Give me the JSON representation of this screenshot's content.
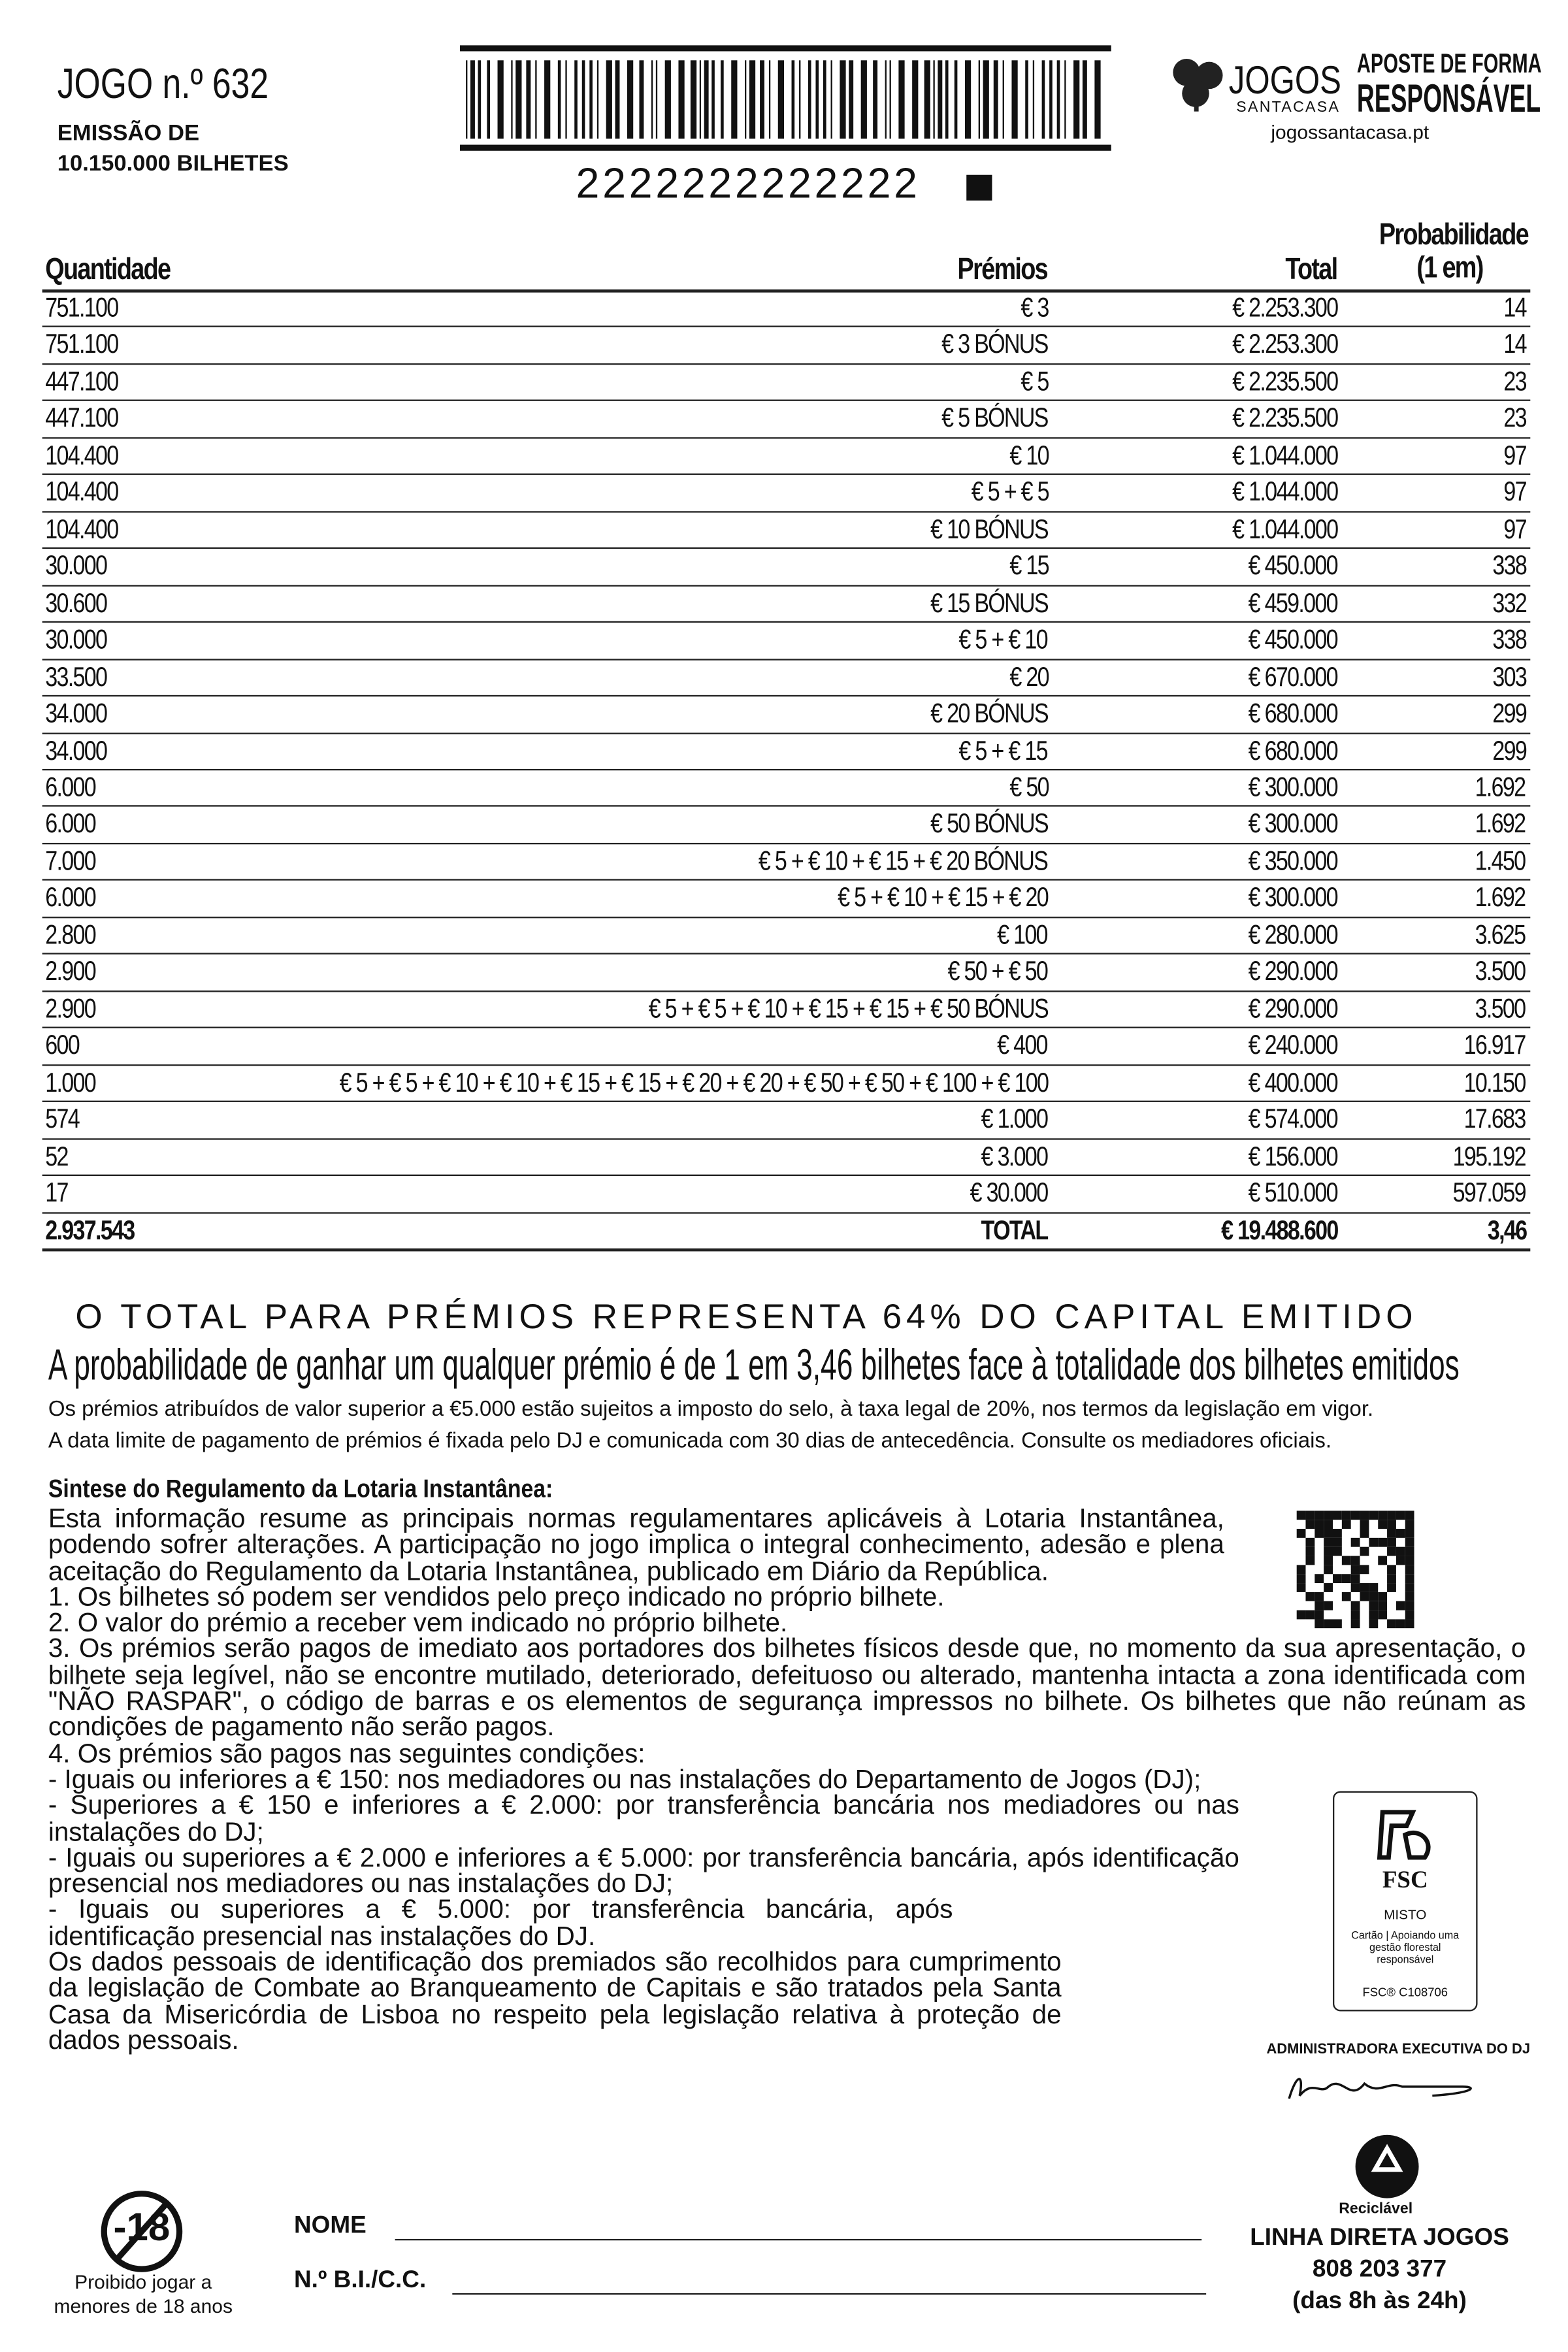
{
  "header": {
    "game": "JOGO n.º 632",
    "emission": [
      "EMISSÃO DE",
      "10.150.000 BILHETES"
    ],
    "barcode_number": "2222222222222",
    "brand": "JOGOS",
    "brand_sub": "SANTACASA",
    "slogan": [
      "APOSTE DE FORMA",
      "RESPONSÁVEL"
    ],
    "website": "jogossantacasa.pt"
  },
  "table": {
    "columns": [
      "Quantidade",
      "Prémios",
      "Total",
      [
        "Probabilidade",
        "(1 em)"
      ]
    ],
    "rows": [
      [
        "751.100",
        "€ 3",
        "€ 2.253.300",
        "14"
      ],
      [
        "751.100",
        "€ 3 BÓNUS",
        "€ 2.253.300",
        "14"
      ],
      [
        "447.100",
        "€ 5",
        "€ 2.235.500",
        "23"
      ],
      [
        "447.100",
        "€ 5 BÓNUS",
        "€ 2.235.500",
        "23"
      ],
      [
        "104.400",
        "€ 10",
        "€ 1.044.000",
        "97"
      ],
      [
        "104.400",
        "€ 5 + € 5",
        "€ 1.044.000",
        "97"
      ],
      [
        "104.400",
        "€ 10 BÓNUS",
        "€ 1.044.000",
        "97"
      ],
      [
        "30.000",
        "€ 15",
        "€ 450.000",
        "338"
      ],
      [
        "30.600",
        "€ 15 BÓNUS",
        "€ 459.000",
        "332"
      ],
      [
        "30.000",
        "€ 5 + € 10",
        "€ 450.000",
        "338"
      ],
      [
        "33.500",
        "€ 20",
        "€ 670.000",
        "303"
      ],
      [
        "34.000",
        "€ 20 BÓNUS",
        "€ 680.000",
        "299"
      ],
      [
        "34.000",
        "€ 5 + € 15",
        "€ 680.000",
        "299"
      ],
      [
        "6.000",
        "€ 50",
        "€ 300.000",
        "1.692"
      ],
      [
        "6.000",
        "€ 50 BÓNUS",
        "€ 300.000",
        "1.692"
      ],
      [
        "7.000",
        "€ 5 + € 10 + € 15 + € 20 BÓNUS",
        "€ 350.000",
        "1.450"
      ],
      [
        "6.000",
        "€ 5 + € 10 + € 15 + € 20",
        "€ 300.000",
        "1.692"
      ],
      [
        "2.800",
        "€ 100",
        "€ 280.000",
        "3.625"
      ],
      [
        "2.900",
        "€ 50 + € 50",
        "€ 290.000",
        "3.500"
      ],
      [
        "2.900",
        "€ 5 + € 5 + € 10 + € 15 + € 15 + € 50 BÓNUS",
        "€ 290.000",
        "3.500"
      ],
      [
        "600",
        "€ 400",
        "€ 240.000",
        "16.917"
      ],
      [
        "1.000",
        "€ 5 + € 5 + € 10 + € 10 + € 15  + € 15 + € 20 + € 20 + € 50 + € 50 + € 100 + € 100",
        "€ 400.000",
        "10.150"
      ],
      [
        "574",
        "€ 1.000",
        "€ 574.000",
        "17.683"
      ],
      [
        "52",
        "€ 3.000",
        "€ 156.000",
        "195.192"
      ],
      [
        "17",
        "€ 30.000",
        "€ 510.000",
        "597.059"
      ]
    ],
    "total": [
      "2.937.543",
      "TOTAL",
      "€ 19.488.600",
      "3,46"
    ]
  },
  "summary": {
    "headline": "O TOTAL PARA PRÉMIOS REPRESENTA 64% DO CAPITAL EMITIDO",
    "subheadline": "A probabilidade de ganhar um qualquer prémio é de 1 em 3,46 bilhetes face à totalidade dos bilhetes emitidos",
    "notes": [
      "Os prémios atribuídos de valor superior a €5.000 estão sujeitos a imposto do selo, à taxa legal de 20%, nos termos da legislação em vigor.",
      "A data limite de pagamento de prémios é fixada pelo DJ e comunicada com 30 dias de antecedência. Consulte os mediadores oficiais."
    ]
  },
  "regulation": {
    "title": "Sintese do Regulamento da Lotaria Instantânea:",
    "paragraphs": [
      "Esta informação resume as principais normas regulamentares aplicáveis à Lotaria Instantânea, podendo sofrer alterações. A participação no jogo implica o integral conhecimento, adesão e plena aceitação do Regulamento da Lotaria Instantânea, publicado em Diário da República.",
      "1. Os bilhetes só podem ser vendidos pelo preço indicado no próprio bilhete.",
      "2. O valor do prémio a receber vem indicado no próprio bilhete.",
      "3. Os prémios serão pagos de imediato aos portadores dos bilhetes físicos desde que, no momento da sua apresentação, o bilhete seja legível, não se encontre mutilado, deteriorado, defeituoso ou alterado, mantenha intacta a zona identificada com \"NÃO RASPAR\", o código de barras e os elementos de segurança impressos no bilhete. Os bilhetes que não reúnam as condições de pagamento não serão pagos.",
      "4. Os prémios são pagos nas seguintes condições:",
      "- Iguais ou inferiores a € 150: nos mediadores ou nas instalações do Departamento de Jogos (DJ);",
      "- Superiores a € 150 e inferiores a € 2.000: por transferência bancária nos mediadores ou nas instalações do DJ;",
      "- Iguais ou superiores a € 2.000 e inferiores a € 5.000: por transferência bancária, após identificação presencial nos mediadores ou nas instalações do DJ;",
      "- Iguais ou superiores a € 5.000: por transferência bancária, após identificação presencial nas instalações do DJ.",
      "Os dados pessoais de identificação dos premiados são recolhidos para cumprimento da legislação de Combate ao Branqueamento de Capitais e são tratados pela Santa Casa da Misericórdia de Lisboa no respeito pela legislação relativa à proteção de dados pessoais."
    ]
  },
  "fsc": {
    "logo": "FSC",
    "type": "MISTO",
    "text": "Cartão | Apoiando uma gestão florestal responsável",
    "code": "FSC® C108706"
  },
  "administrator": "ADMINISTRADORA EXECUTIVA DO DJ",
  "recycle": "Reciclável",
  "hotline": {
    "title": "LINHA DIRETA JOGOS",
    "phone": "808 203 377",
    "hours": "(das 8h às 24h)"
  },
  "age": {
    "badge": "-18",
    "text": [
      "Proibido jogar a",
      "menores de 18 anos"
    ]
  },
  "form": {
    "name": "NOME",
    "id": "N.º B.I./C.C."
  }
}
